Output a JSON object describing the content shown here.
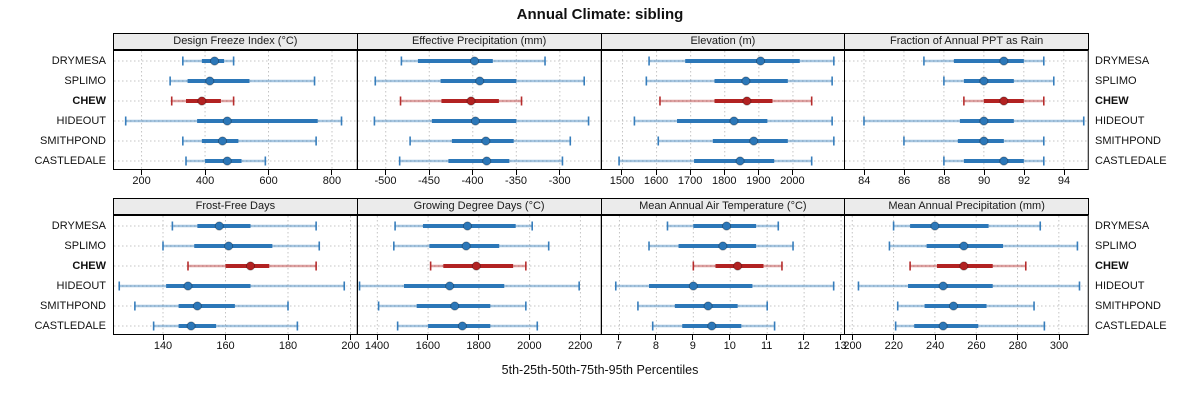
{
  "title": "Annual Climate: sibling",
  "caption": "5th-25th-50th-75th-95th Percentiles",
  "sites": [
    "DRYMESA",
    "SPLIMO",
    "CHEW",
    "HIDEOUT",
    "SMITHPOND",
    "CASTLEDALE"
  ],
  "highlight_site": "CHEW",
  "colors": {
    "series": "#2C77B8",
    "highlight": "#B22222",
    "grid": "#C4C4C4",
    "header_bg": "#EBEBEB",
    "border": "#000000"
  },
  "chart_data": {
    "type": "dotplot-percentiles",
    "suptitle": "Annual Climate: sibling",
    "xlabel": "5th-25th-50th-75th-95th Percentiles",
    "percentile_levels": [
      5,
      25,
      50,
      75,
      95
    ],
    "legend_position": "none",
    "grid": "dotted",
    "layout": "2 rows x 4 columns",
    "categories": [
      "DRYMESA",
      "SPLIMO",
      "CHEW",
      "HIDEOUT",
      "SMITHPOND",
      "CASTLEDALE"
    ],
    "panels": [
      {
        "title": "Design Freeze Index (°C)",
        "xlim": [
          110,
          878
        ],
        "ticks": [
          200,
          400,
          600,
          800
        ],
        "series": [
          {
            "name": "DRYMESA",
            "values": [
              330,
              390,
              430,
              460,
              490
            ]
          },
          {
            "name": "SPLIMO",
            "values": [
              290,
              345,
              415,
              540,
              745
            ]
          },
          {
            "name": "CHEW",
            "values": [
              295,
              340,
              390,
              450,
              490
            ]
          },
          {
            "name": "HIDEOUT",
            "values": [
              150,
              375,
              470,
              755,
              830
            ]
          },
          {
            "name": "SMITHPOND",
            "values": [
              330,
              390,
              455,
              505,
              750
            ]
          },
          {
            "name": "CASTLEDALE",
            "values": [
              340,
              400,
              470,
              515,
              590
            ]
          }
        ]
      },
      {
        "title": "Effective Precipitation (mm)",
        "xlim": [
          -533,
          -253
        ],
        "ticks": [
          -500,
          -450,
          -400,
          -350,
          -300
        ],
        "series": [
          {
            "name": "DRYMESA",
            "values": [
              -482,
              -463,
              -398,
              -377,
              -317
            ]
          },
          {
            "name": "SPLIMO",
            "values": [
              -512,
              -437,
              -392,
              -350,
              -272
            ]
          },
          {
            "name": "CHEW",
            "values": [
              -483,
              -436,
              -402,
              -370,
              -344
            ]
          },
          {
            "name": "HIDEOUT",
            "values": [
              -513,
              -447,
              -397,
              -350,
              -267
            ]
          },
          {
            "name": "SMITHPOND",
            "values": [
              -472,
              -424,
              -385,
              -353,
              -288
            ]
          },
          {
            "name": "CASTLEDALE",
            "values": [
              -484,
              -428,
              -384,
              -358,
              -297
            ]
          }
        ]
      },
      {
        "title": "Elevation (m)",
        "xlim": [
          1437,
          2152
        ],
        "ticks": [
          1500,
          1600,
          1700,
          1800,
          1900,
          2000
        ],
        "series": [
          {
            "name": "DRYMESA",
            "values": [
              1578,
              1684,
              1905,
              2020,
              2120
            ]
          },
          {
            "name": "SPLIMO",
            "values": [
              1570,
              1770,
              1862,
              1985,
              2115
            ]
          },
          {
            "name": "CHEW",
            "values": [
              1610,
              1770,
              1865,
              1940,
              2055
            ]
          },
          {
            "name": "HIDEOUT",
            "values": [
              1535,
              1660,
              1827,
              1925,
              2115
            ]
          },
          {
            "name": "SMITHPOND",
            "values": [
              1605,
              1765,
              1885,
              1985,
              2120
            ]
          },
          {
            "name": "CASTLEDALE",
            "values": [
              1490,
              1710,
              1845,
              1945,
              2055
            ]
          }
        ]
      },
      {
        "title": "Fraction of Annual PPT as Rain",
        "xlim": [
          83.0,
          95.2
        ],
        "ticks": [
          84,
          86,
          88,
          90,
          92,
          94
        ],
        "series": [
          {
            "name": "DRYMESA",
            "values": [
              87,
              88.5,
              91,
              92,
              93
            ]
          },
          {
            "name": "SPLIMO",
            "values": [
              88,
              89,
              90,
              91.5,
              93.5
            ]
          },
          {
            "name": "CHEW",
            "values": [
              89,
              90,
              91,
              92,
              93
            ]
          },
          {
            "name": "HIDEOUT",
            "values": [
              84,
              88.8,
              90,
              91.5,
              95
            ]
          },
          {
            "name": "SMITHPOND",
            "values": [
              86,
              88.7,
              90,
              91,
              93
            ]
          },
          {
            "name": "CASTLEDALE",
            "values": [
              88,
              89,
              91,
              92,
              93
            ]
          }
        ]
      },
      {
        "title": "Frost-Free Days",
        "xlim": [
          124,
          202
        ],
        "ticks": [
          140,
          160,
          180,
          200
        ],
        "series": [
          {
            "name": "DRYMESA",
            "values": [
              143,
              151,
              158,
              168,
              189
            ]
          },
          {
            "name": "SPLIMO",
            "values": [
              140,
              150,
              161,
              175,
              190
            ]
          },
          {
            "name": "CHEW",
            "values": [
              148,
              160,
              168,
              174,
              189
            ]
          },
          {
            "name": "HIDEOUT",
            "values": [
              126,
              141,
              148,
              168,
              198
            ]
          },
          {
            "name": "SMITHPOND",
            "values": [
              131,
              145,
              151,
              163,
              180
            ]
          },
          {
            "name": "CASTLEDALE",
            "values": [
              137,
              145,
              149,
              157,
              183
            ]
          }
        ]
      },
      {
        "title": "Growing Degree Days (°C)",
        "xlim": [
          1320,
          2280
        ],
        "ticks": [
          1400,
          1600,
          1800,
          2000,
          2200
        ],
        "series": [
          {
            "name": "DRYMESA",
            "values": [
              1470,
              1580,
              1755,
              1945,
              2010
            ]
          },
          {
            "name": "SPLIMO",
            "values": [
              1465,
              1605,
              1750,
              1880,
              2075
            ]
          },
          {
            "name": "CHEW",
            "values": [
              1610,
              1660,
              1790,
              1935,
              1985
            ]
          },
          {
            "name": "HIDEOUT",
            "values": [
              1330,
              1505,
              1685,
              1900,
              2195
            ]
          },
          {
            "name": "SMITHPOND",
            "values": [
              1405,
              1555,
              1705,
              1845,
              1985
            ]
          },
          {
            "name": "CASTLEDALE",
            "values": [
              1480,
              1600,
              1735,
              1845,
              2030
            ]
          }
        ]
      },
      {
        "title": "Mean Annual Air Temperature (°C)",
        "xlim": [
          6.5,
          13.1
        ],
        "ticks": [
          7,
          8,
          9,
          10,
          11,
          12,
          13
        ],
        "series": [
          {
            "name": "DRYMESA",
            "values": [
              8.3,
              9.0,
              9.9,
              10.7,
              11.3
            ]
          },
          {
            "name": "SPLIMO",
            "values": [
              7.8,
              8.6,
              9.8,
              10.7,
              11.7
            ]
          },
          {
            "name": "CHEW",
            "values": [
              9.0,
              9.6,
              10.2,
              10.9,
              11.4
            ]
          },
          {
            "name": "HIDEOUT",
            "values": [
              6.9,
              7.8,
              9.0,
              10.6,
              12.8
            ]
          },
          {
            "name": "SMITHPOND",
            "values": [
              7.5,
              8.5,
              9.4,
              10.2,
              11.0
            ]
          },
          {
            "name": "CASTLEDALE",
            "values": [
              7.9,
              8.7,
              9.5,
              10.3,
              11.2
            ]
          }
        ]
      },
      {
        "title": "Mean Annual Precipitation (mm)",
        "xlim": [
          196,
          314
        ],
        "ticks": [
          200,
          220,
          240,
          260,
          280,
          300
        ],
        "series": [
          {
            "name": "DRYMESA",
            "values": [
              220,
              228,
              240,
              266,
              291
            ]
          },
          {
            "name": "SPLIMO",
            "values": [
              218,
              236,
              254,
              273,
              309
            ]
          },
          {
            "name": "CHEW",
            "values": [
              228,
              241,
              254,
              268,
              284
            ]
          },
          {
            "name": "HIDEOUT",
            "values": [
              203,
              227,
              244,
              268,
              310
            ]
          },
          {
            "name": "SMITHPOND",
            "values": [
              222,
              235,
              249,
              265,
              288
            ]
          },
          {
            "name": "CASTLEDALE",
            "values": [
              221,
              230,
              244,
              261,
              293
            ]
          }
        ]
      }
    ]
  }
}
